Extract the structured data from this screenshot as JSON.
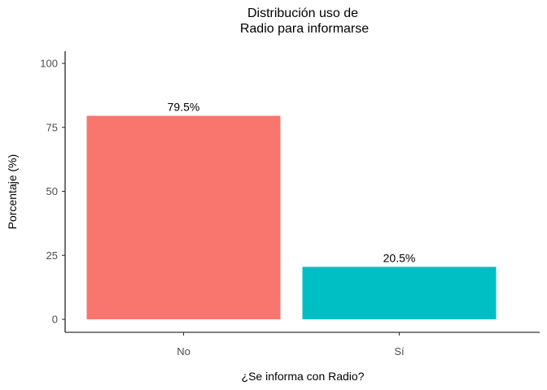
{
  "chart_data": {
    "type": "bar",
    "title_lines": [
      "Distribución uso de",
      "Radio para informarse"
    ],
    "xlabel": "¿Se informa con Radio?",
    "ylabel": "Porcentaje (%)",
    "categories": [
      "No",
      "Sí"
    ],
    "values": [
      79.5,
      20.5
    ],
    "data_labels": [
      "79.5%",
      "20.5%"
    ],
    "colors": [
      "#F8766D",
      "#00BFC4"
    ],
    "ylim": [
      0,
      100
    ],
    "yticks": [
      0,
      25,
      50,
      75,
      100
    ],
    "grid": false,
    "legend": "none"
  }
}
